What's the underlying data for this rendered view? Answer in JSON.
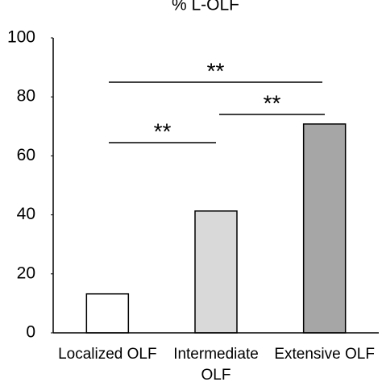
{
  "chart_data": {
    "type": "bar",
    "title": "% L-OLF",
    "categories": [
      "Localized OLF",
      "Intermediate OLF",
      "Extensive OLF"
    ],
    "values": [
      13.2,
      41.3,
      70.8
    ],
    "colors": [
      "#ffffff",
      "#d9d9d9",
      "#a6a6a6"
    ],
    "ylim": [
      0,
      100
    ],
    "yticks": [
      0,
      20,
      40,
      60,
      80,
      100
    ],
    "annotations": [
      {
        "text": "**"
      },
      {
        "text": "**"
      },
      {
        "text": "**"
      }
    ]
  }
}
